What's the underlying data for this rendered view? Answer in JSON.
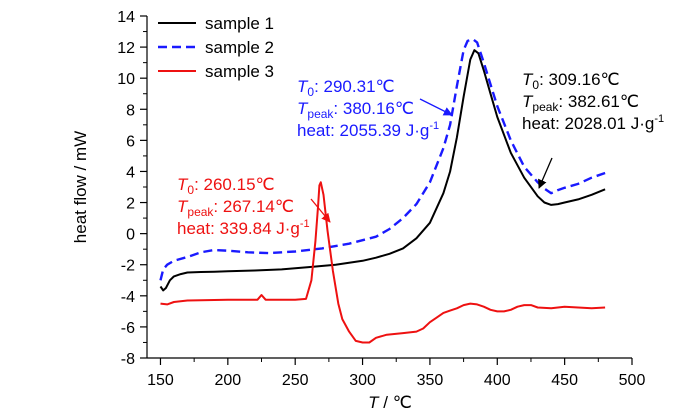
{
  "chart_data": {
    "type": "line",
    "xlabel_symbol": "T",
    "xlabel_unit": "/ ℃",
    "ylabel": "heat flow / mW",
    "xlim": [
      140,
      500
    ],
    "ylim": [
      -8,
      14
    ],
    "xticks": [
      150,
      200,
      250,
      300,
      350,
      400,
      450,
      500
    ],
    "yticks": [
      -8,
      -6,
      -4,
      -2,
      0,
      2,
      4,
      6,
      8,
      10,
      12,
      14
    ],
    "legend_position": "top-left",
    "series": [
      {
        "name": "sample 1",
        "color": "#000000",
        "dash": "solid",
        "points": [
          [
            150,
            -3.4
          ],
          [
            152,
            -3.65
          ],
          [
            154,
            -3.5
          ],
          [
            157,
            -3.0
          ],
          [
            160,
            -2.75
          ],
          [
            165,
            -2.6
          ],
          [
            170,
            -2.5
          ],
          [
            180,
            -2.47
          ],
          [
            190,
            -2.45
          ],
          [
            200,
            -2.42
          ],
          [
            220,
            -2.37
          ],
          [
            240,
            -2.3
          ],
          [
            260,
            -2.15
          ],
          [
            280,
            -2.0
          ],
          [
            300,
            -1.75
          ],
          [
            310,
            -1.55
          ],
          [
            320,
            -1.3
          ],
          [
            330,
            -0.95
          ],
          [
            340,
            -0.3
          ],
          [
            350,
            0.7
          ],
          [
            360,
            2.6
          ],
          [
            365,
            4.0
          ],
          [
            370,
            6.2
          ],
          [
            375,
            8.8
          ],
          [
            380,
            11.2
          ],
          [
            383,
            11.8
          ],
          [
            386,
            11.6
          ],
          [
            390,
            10.5
          ],
          [
            395,
            9.0
          ],
          [
            400,
            7.5
          ],
          [
            410,
            5.2
          ],
          [
            420,
            3.6
          ],
          [
            430,
            2.4
          ],
          [
            435,
            2.0
          ],
          [
            440,
            1.85
          ],
          [
            445,
            1.9
          ],
          [
            450,
            2.0
          ],
          [
            460,
            2.2
          ],
          [
            470,
            2.5
          ],
          [
            480,
            2.85
          ]
        ]
      },
      {
        "name": "sample 2",
        "color": "#1a1aff",
        "dash": "dashed",
        "points": [
          [
            150,
            -3.0
          ],
          [
            152,
            -2.3
          ],
          [
            155,
            -2.0
          ],
          [
            160,
            -1.75
          ],
          [
            170,
            -1.5
          ],
          [
            180,
            -1.2
          ],
          [
            190,
            -1.05
          ],
          [
            200,
            -1.1
          ],
          [
            215,
            -1.2
          ],
          [
            230,
            -1.25
          ],
          [
            250,
            -1.15
          ],
          [
            270,
            -0.95
          ],
          [
            290,
            -0.65
          ],
          [
            310,
            -0.2
          ],
          [
            320,
            0.3
          ],
          [
            330,
            1.0
          ],
          [
            340,
            1.9
          ],
          [
            350,
            3.3
          ],
          [
            360,
            5.5
          ],
          [
            365,
            7.0
          ],
          [
            370,
            9.5
          ],
          [
            375,
            11.8
          ],
          [
            378,
            12.4
          ],
          [
            382,
            12.5
          ],
          [
            385,
            12.3
          ],
          [
            390,
            11.0
          ],
          [
            395,
            9.6
          ],
          [
            400,
            8.2
          ],
          [
            410,
            6.0
          ],
          [
            420,
            4.3
          ],
          [
            430,
            3.3
          ],
          [
            435,
            2.9
          ],
          [
            440,
            2.6
          ],
          [
            445,
            2.8
          ],
          [
            450,
            2.95
          ],
          [
            460,
            3.2
          ],
          [
            470,
            3.6
          ],
          [
            480,
            3.9
          ]
        ]
      },
      {
        "name": "sample 3",
        "color": "#ee1111",
        "dash": "solid",
        "points": [
          [
            150,
            -4.5
          ],
          [
            155,
            -4.55
          ],
          [
            160,
            -4.4
          ],
          [
            170,
            -4.3
          ],
          [
            200,
            -4.25
          ],
          [
            222,
            -4.25
          ],
          [
            225,
            -3.95
          ],
          [
            228,
            -4.25
          ],
          [
            250,
            -4.25
          ],
          [
            258,
            -4.2
          ],
          [
            262,
            -3.0
          ],
          [
            265,
            -0.5
          ],
          [
            267,
            1.8
          ],
          [
            268,
            3.1
          ],
          [
            269,
            3.3
          ],
          [
            271,
            2.5
          ],
          [
            274,
            0.2
          ],
          [
            278,
            -2.4
          ],
          [
            282,
            -4.5
          ],
          [
            285,
            -5.5
          ],
          [
            290,
            -6.3
          ],
          [
            295,
            -6.9
          ],
          [
            300,
            -7.0
          ],
          [
            305,
            -7.0
          ],
          [
            310,
            -6.7
          ],
          [
            318,
            -6.5
          ],
          [
            330,
            -6.4
          ],
          [
            340,
            -6.3
          ],
          [
            345,
            -6.1
          ],
          [
            350,
            -5.7
          ],
          [
            355,
            -5.4
          ],
          [
            360,
            -5.1
          ],
          [
            365,
            -4.95
          ],
          [
            370,
            -4.8
          ],
          [
            375,
            -4.6
          ],
          [
            380,
            -4.5
          ],
          [
            385,
            -4.55
          ],
          [
            390,
            -4.7
          ],
          [
            395,
            -4.9
          ],
          [
            400,
            -5.0
          ],
          [
            405,
            -5.0
          ],
          [
            410,
            -4.9
          ],
          [
            415,
            -4.7
          ],
          [
            420,
            -4.6
          ],
          [
            425,
            -4.6
          ],
          [
            430,
            -4.75
          ],
          [
            440,
            -4.8
          ],
          [
            450,
            -4.7
          ],
          [
            460,
            -4.75
          ],
          [
            470,
            -4.8
          ],
          [
            480,
            -4.75
          ]
        ]
      }
    ],
    "annotations": [
      {
        "id": "sample3",
        "color": "#ee1111",
        "lines": [
          {
            "sym": "T",
            "sub": "0",
            "val": ": 260.15℃"
          },
          {
            "sym": "T",
            "sub": "peak",
            "val": ": 267.14℃"
          },
          {
            "text": "heat: 339.84 J·g",
            "sup": "-1"
          }
        ]
      },
      {
        "id": "sample2",
        "color": "#1a1aff",
        "lines": [
          {
            "sym": "T",
            "sub": "0",
            "val": ": 290.31℃"
          },
          {
            "sym": "T",
            "sub": "peak",
            "val": ": 380.16℃"
          },
          {
            "text": "heat: 2055.39 J·g",
            "sup": "-1"
          }
        ]
      },
      {
        "id": "sample1",
        "color": "#000000",
        "lines": [
          {
            "sym": "T",
            "sub": "0",
            "val": ": 309.16℃"
          },
          {
            "sym": "T",
            "sub": "peak",
            "val": ": 382.61℃"
          },
          {
            "text": "heat: 2028.01 J·g",
            "sup": "-1"
          }
        ]
      }
    ]
  }
}
